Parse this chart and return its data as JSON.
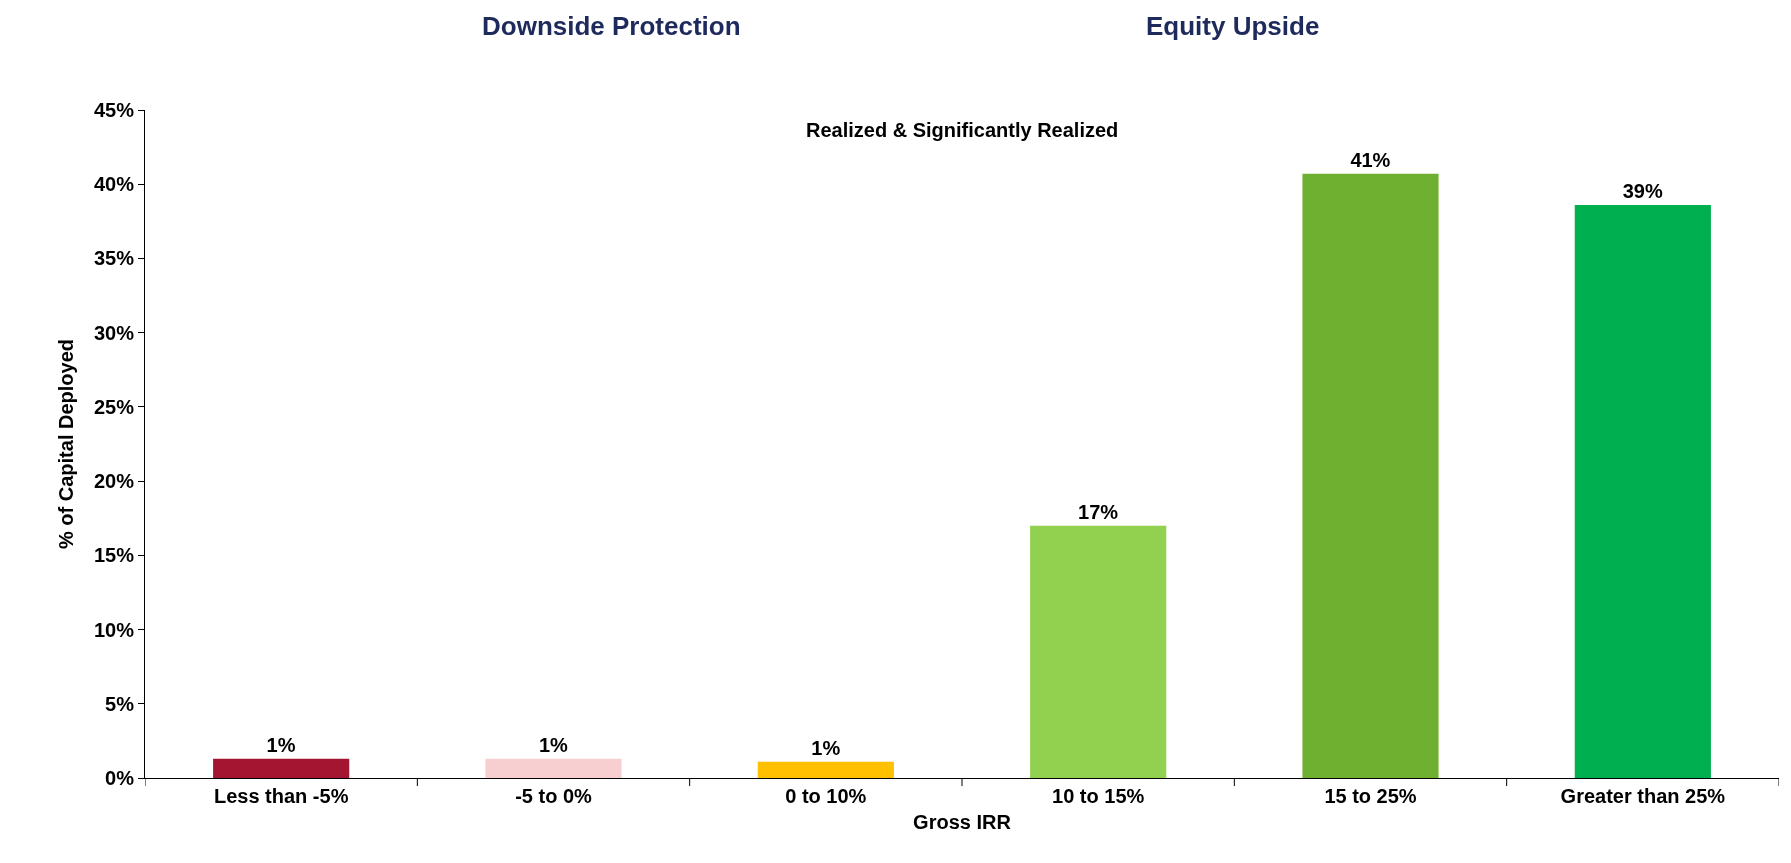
{
  "chart_data": {
    "type": "bar",
    "xlabel": "Gross IRR",
    "ylabel": "% of Capital Deployed",
    "categories": [
      "Less than -5%",
      "-5 to 0%",
      "0 to 10%",
      "10 to 15%",
      "15 to 25%",
      "Greater than 25%"
    ],
    "values": [
      1.3,
      1.3,
      1.1,
      17.0,
      40.7,
      38.6
    ],
    "value_labels": [
      "1%",
      "1%",
      "1%",
      "17%",
      "41%",
      "39%"
    ],
    "colors": [
      "#a31530",
      "#f8cfd0",
      "#ffc000",
      "#92d050",
      "#70b030",
      "#00b050"
    ],
    "ylim": [
      0,
      45
    ],
    "yticks": [
      {
        "value": 0,
        "label": "0%"
      },
      {
        "value": 5,
        "label": "5%"
      },
      {
        "value": 10,
        "label": "10%"
      },
      {
        "value": 15,
        "label": "15%"
      },
      {
        "value": 20,
        "label": "20%"
      },
      {
        "value": 25,
        "label": "25%"
      },
      {
        "value": 30,
        "label": "30%"
      },
      {
        "value": 35,
        "label": "35%"
      },
      {
        "value": 40,
        "label": "40%"
      },
      {
        "value": 45,
        "label": "45%"
      }
    ],
    "legend": false,
    "annotations": [
      "Downside Protection",
      "Equity Upside",
      "Realized & Significantly Realized"
    ]
  }
}
